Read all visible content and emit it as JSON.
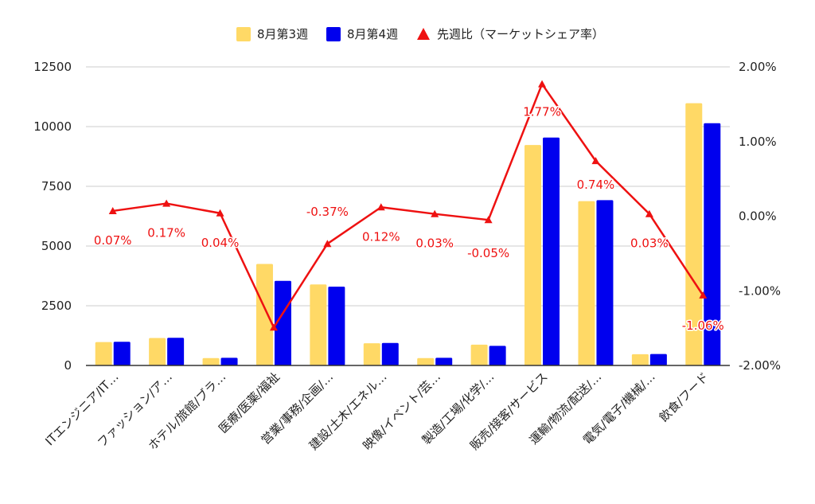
{
  "chart_data": {
    "type": "bar",
    "categories": [
      "ITエンジニア/IT…",
      "ファッション/ア…",
      "ホテル/旅館/ブラ…",
      "医療/医薬/福祉",
      "営業/事務/企画/…",
      "建設/土木/エネル…",
      "映像/イベント/芸…",
      "製造/工場/化学/…",
      "販売/接客/サービス",
      "運輸/物流/配送/…",
      "電気/電子/機械/…",
      "飲食/フード"
    ],
    "series": [
      {
        "name": "8月第3週",
        "type": "bar",
        "axis": "left",
        "color": "#FFD966",
        "values": [
          980,
          1150,
          310,
          4250,
          3390,
          930,
          310,
          870,
          9230,
          6880,
          470,
          10980
        ]
      },
      {
        "name": "8月第4週",
        "type": "bar",
        "axis": "left",
        "color": "#0000EE",
        "values": [
          990,
          1160,
          320,
          3540,
          3300,
          940,
          320,
          820,
          9540,
          6920,
          480,
          10140
        ]
      },
      {
        "name": "先週比（マーケットシェア率）",
        "type": "line",
        "axis": "right",
        "color": "#EE1111",
        "marker": "triangle",
        "values": [
          0.07,
          0.17,
          0.04,
          -1.49,
          -0.37,
          0.12,
          0.03,
          -0.05,
          1.77,
          0.74,
          0.03,
          -1.06
        ],
        "labels": [
          "0.07%",
          "0.17%",
          "0.04%",
          "",
          "-0.37%",
          "0.12%",
          "0.03%",
          "-0.05%",
          "1.77%",
          "0.74%",
          "0.03%",
          "-1.06%"
        ]
      }
    ],
    "y_left": {
      "ylim": [
        0,
        12500
      ],
      "ticks": [
        0,
        2500,
        5000,
        7500,
        10000,
        12500
      ],
      "tick_labels": [
        "0",
        "2500",
        "5000",
        "7500",
        "10000",
        "12500"
      ]
    },
    "y_right": {
      "ylim": [
        -2,
        2
      ],
      "ticks": [
        -2,
        -1,
        0,
        1,
        2
      ],
      "tick_labels": [
        "-2.00%",
        "-1.00%",
        "0.00%",
        "1.00%",
        "2.00%"
      ]
    },
    "grid": true,
    "legend": "top-center",
    "title": "",
    "xlabel": "",
    "ylabel": ""
  }
}
